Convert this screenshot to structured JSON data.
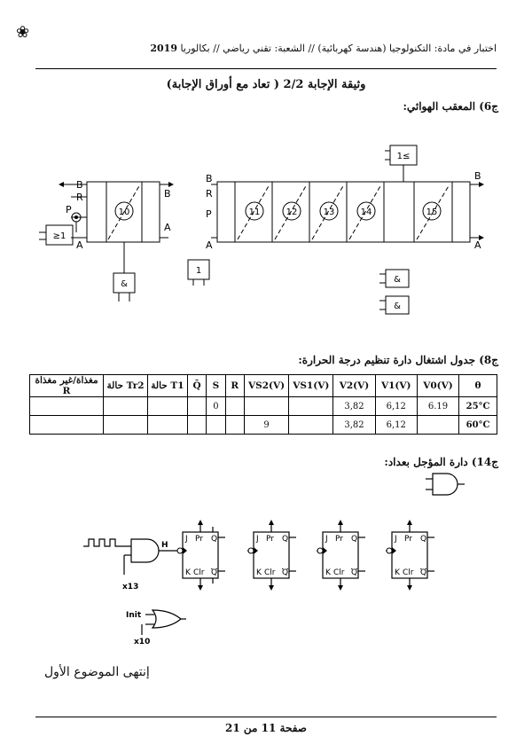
{
  "header": {
    "subject_line": "اختبار في مادة: التكنولوجيا (هندسة كهربائية) // الشعبة: تقني رياضي // بكالوريا",
    "year": "2019"
  },
  "doc_title": "وثيقة الإجابة 2/2 ( تعاد مع أوراق الإجابة)",
  "q6": {
    "label": "ج6)  المعقب الهوائي:",
    "port_labels": {
      "B": "B",
      "R": "R",
      "P": "P",
      "A": "A"
    },
    "stages": [
      "10",
      "11",
      "12",
      "13",
      "14",
      "15"
    ],
    "gates": {
      "or": "≥1",
      "and": "&",
      "not": "1",
      "or_top": "1≤"
    }
  },
  "q8": {
    "label": "ج8)  جدول اشتغال دارة تنظيم درجة الحرارة:",
    "headers": [
      "θ",
      "V0(V)",
      "V1(V)",
      "V2(V)",
      "VS1(V)",
      "VS2(V)",
      "R",
      "S",
      "Q̄",
      "حالة T1",
      "حالة Tr2",
      "مغذاة/غير مغذاة R"
    ],
    "rows": [
      [
        "25°C",
        "6.19",
        "6,12",
        "3,82",
        "",
        "",
        "",
        "0",
        "",
        "",
        "",
        ""
      ],
      [
        "60°C",
        "",
        "6,12",
        "3,82",
        "",
        "9",
        "",
        "",
        "",
        "",
        "",
        ""
      ]
    ]
  },
  "q14": {
    "label": "ج14)  دارة المؤجل بعداد:",
    "gate_out": "H",
    "inputs": {
      "x13": "x13",
      "init": "Init",
      "x10": "x10"
    },
    "flipflop": {
      "j": "J",
      "pr": "Pr",
      "q": "Q",
      "k": "K",
      "clr": "Clr",
      "qbar": "Q"
    }
  },
  "end_text": "إنتهى الموضوع الأول",
  "footer": "صفحة 11 من 21"
}
